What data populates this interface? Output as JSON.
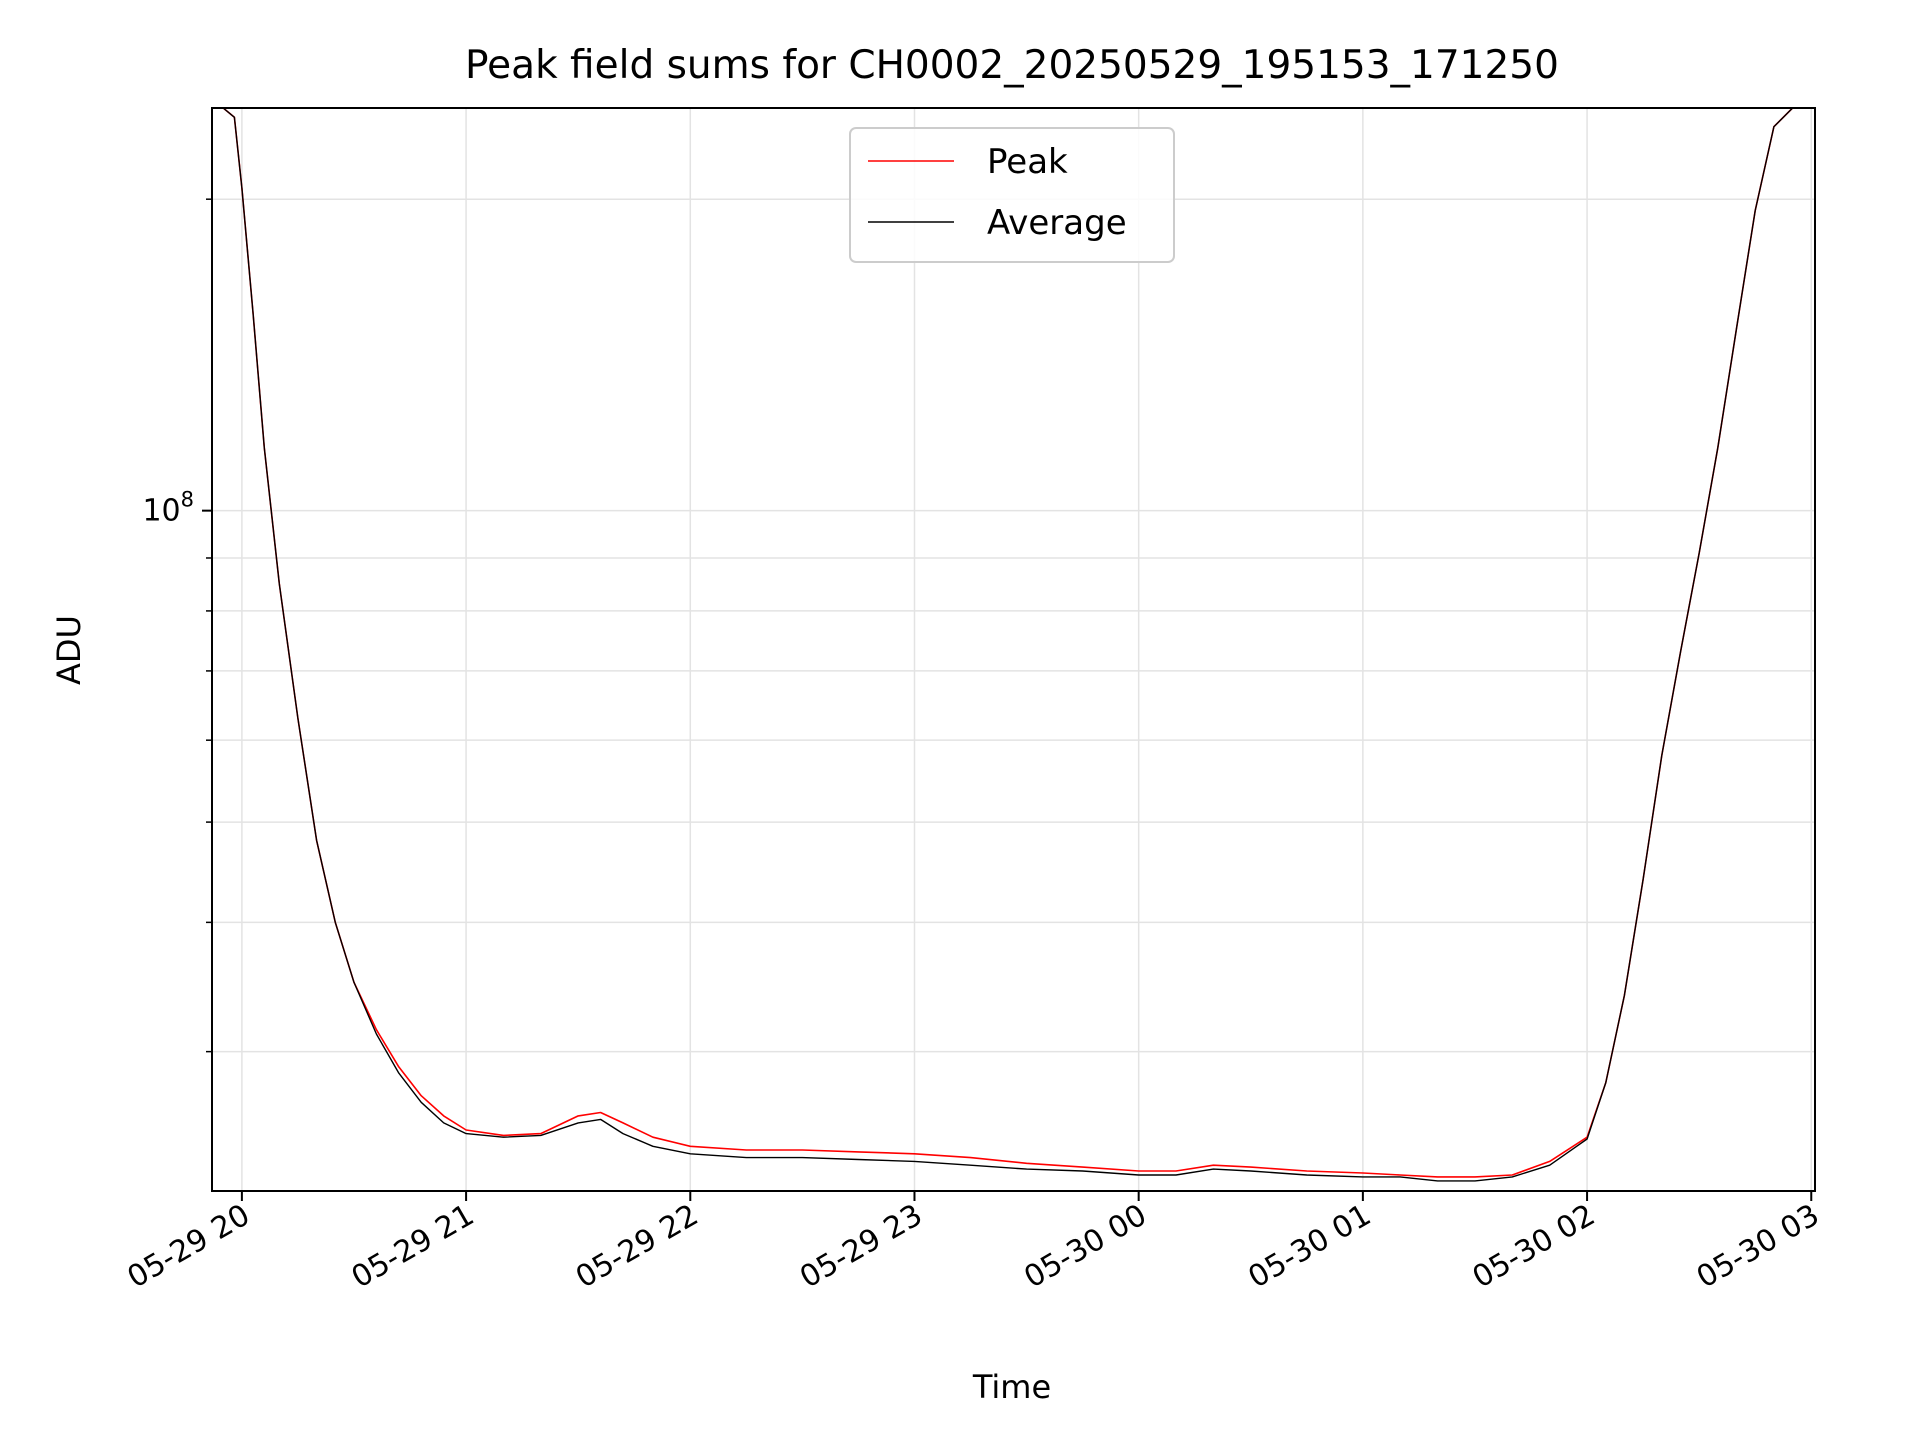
{
  "chart_data": {
    "type": "line",
    "title": "Peak field sums for CH0002_20250529_195153_171250",
    "xlabel": "Time",
    "ylabel": "ADU",
    "yscale": "log",
    "ylim": [
      22000000.0,
      245000000.0
    ],
    "xlim": [
      "2025-05-29 19:52",
      "2025-05-30 03:01"
    ],
    "x_ticks": [
      {
        "value": "2025-05-29 20:00",
        "label": "05-29 20"
      },
      {
        "value": "2025-05-29 21:00",
        "label": "05-29 21"
      },
      {
        "value": "2025-05-29 22:00",
        "label": "05-29 22"
      },
      {
        "value": "2025-05-29 23:00",
        "label": "05-29 23"
      },
      {
        "value": "2025-05-30 00:00",
        "label": "05-30 00"
      },
      {
        "value": "2025-05-30 01:00",
        "label": "05-30 01"
      },
      {
        "value": "2025-05-30 02:00",
        "label": "05-30 02"
      },
      {
        "value": "2025-05-30 03:00",
        "label": "05-30 03"
      }
    ],
    "y_ticks": [
      {
        "value": 100000000,
        "label_base": "10",
        "label_exp": "8"
      }
    ],
    "grid": true,
    "legend_position": "upper center",
    "series": [
      {
        "name": "Peak",
        "color": "#ff0000",
        "x": [
          "2025-05-29 19:52",
          "2025-05-29 19:55",
          "2025-05-29 19:58",
          "2025-05-29 20:00",
          "2025-05-29 20:03",
          "2025-05-29 20:06",
          "2025-05-29 20:10",
          "2025-05-29 20:15",
          "2025-05-29 20:20",
          "2025-05-29 20:25",
          "2025-05-29 20:30",
          "2025-05-29 20:36",
          "2025-05-29 20:42",
          "2025-05-29 20:48",
          "2025-05-29 20:54",
          "2025-05-29 21:00",
          "2025-05-29 21:10",
          "2025-05-29 21:20",
          "2025-05-29 21:30",
          "2025-05-29 21:36",
          "2025-05-29 21:42",
          "2025-05-29 21:50",
          "2025-05-29 22:00",
          "2025-05-29 22:15",
          "2025-05-29 22:30",
          "2025-05-29 22:45",
          "2025-05-29 23:00",
          "2025-05-29 23:15",
          "2025-05-29 23:30",
          "2025-05-29 23:45",
          "2025-05-30 00:00",
          "2025-05-30 00:10",
          "2025-05-30 00:20",
          "2025-05-30 00:30",
          "2025-05-30 00:45",
          "2025-05-30 01:00",
          "2025-05-30 01:10",
          "2025-05-30 01:20",
          "2025-05-30 01:30",
          "2025-05-30 01:40",
          "2025-05-30 01:50",
          "2025-05-30 02:00",
          "2025-05-30 02:05",
          "2025-05-30 02:10",
          "2025-05-30 02:15",
          "2025-05-30 02:20",
          "2025-05-30 02:25",
          "2025-05-30 02:30",
          "2025-05-30 02:35",
          "2025-05-30 02:40",
          "2025-05-30 02:45",
          "2025-05-30 02:50",
          "2025-05-30 02:55",
          "2025-05-30 03:00"
        ],
        "y": [
          245000000.0,
          245000000.0,
          240000000.0,
          205000000.0,
          155000000.0,
          115000000.0,
          85000000.0,
          63000000.0,
          48000000.0,
          40000000.0,
          35000000.0,
          31500000.0,
          29000000.0,
          27200000.0,
          26000000.0,
          25200000.0,
          24900000.0,
          25000000.0,
          26000000.0,
          26200000.0,
          25600000.0,
          24800000.0,
          24300000.0,
          24100000.0,
          24100000.0,
          24000000.0,
          23900000.0,
          23700000.0,
          23400000.0,
          23200000.0,
          23000000.0,
          23000000.0,
          23300000.0,
          23200000.0,
          23000000.0,
          22900000.0,
          22800000.0,
          22700000.0,
          22700000.0,
          22800000.0,
          23500000.0,
          24800000.0,
          28000000.0,
          34000000.0,
          44000000.0,
          58000000.0,
          73000000.0,
          91000000.0,
          115000000.0,
          150000000.0,
          195000000.0,
          235000000.0,
          245000000.0,
          245000000.0
        ]
      },
      {
        "name": "Average",
        "color": "#000000",
        "x": [
          "2025-05-29 19:52",
          "2025-05-29 19:55",
          "2025-05-29 19:58",
          "2025-05-29 20:00",
          "2025-05-29 20:03",
          "2025-05-29 20:06",
          "2025-05-29 20:10",
          "2025-05-29 20:15",
          "2025-05-29 20:20",
          "2025-05-29 20:25",
          "2025-05-29 20:30",
          "2025-05-29 20:36",
          "2025-05-29 20:42",
          "2025-05-29 20:48",
          "2025-05-29 20:54",
          "2025-05-29 21:00",
          "2025-05-29 21:10",
          "2025-05-29 21:20",
          "2025-05-29 21:30",
          "2025-05-29 21:36",
          "2025-05-29 21:42",
          "2025-05-29 21:50",
          "2025-05-29 22:00",
          "2025-05-29 22:15",
          "2025-05-29 22:30",
          "2025-05-29 22:45",
          "2025-05-29 23:00",
          "2025-05-29 23:15",
          "2025-05-29 23:30",
          "2025-05-29 23:45",
          "2025-05-30 00:00",
          "2025-05-30 00:10",
          "2025-05-30 00:20",
          "2025-05-30 00:30",
          "2025-05-30 00:45",
          "2025-05-30 01:00",
          "2025-05-30 01:10",
          "2025-05-30 01:20",
          "2025-05-30 01:30",
          "2025-05-30 01:40",
          "2025-05-30 01:50",
          "2025-05-30 02:00",
          "2025-05-30 02:05",
          "2025-05-30 02:10",
          "2025-05-30 02:15",
          "2025-05-30 02:20",
          "2025-05-30 02:25",
          "2025-05-30 02:30",
          "2025-05-30 02:35",
          "2025-05-30 02:40",
          "2025-05-30 02:45",
          "2025-05-30 02:50",
          "2025-05-30 02:55",
          "2025-05-30 03:00"
        ],
        "y": [
          245000000.0,
          245000000.0,
          240000000.0,
          205000000.0,
          155000000.0,
          115000000.0,
          85000000.0,
          63000000.0,
          48000000.0,
          40000000.0,
          35000000.0,
          31200000.0,
          28600000.0,
          26800000.0,
          25600000.0,
          25000000.0,
          24800000.0,
          24900000.0,
          25600000.0,
          25800000.0,
          25000000.0,
          24300000.0,
          23900000.0,
          23700000.0,
          23700000.0,
          23600000.0,
          23500000.0,
          23300000.0,
          23100000.0,
          23000000.0,
          22800000.0,
          22800000.0,
          23100000.0,
          23000000.0,
          22800000.0,
          22700000.0,
          22700000.0,
          22500000.0,
          22500000.0,
          22700000.0,
          23300000.0,
          24700000.0,
          28000000.0,
          34000000.0,
          44000000.0,
          58000000.0,
          73000000.0,
          91000000.0,
          115000000.0,
          150000000.0,
          195000000.0,
          235000000.0,
          245000000.0,
          245000000.0
        ]
      }
    ]
  }
}
